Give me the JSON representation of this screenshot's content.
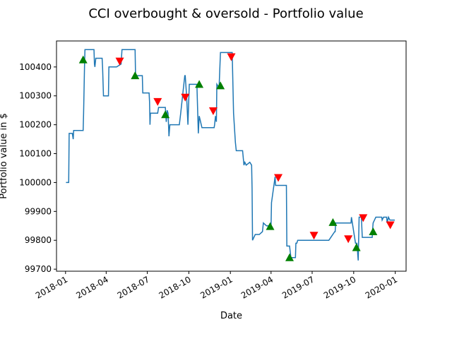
{
  "chart_data": {
    "type": "line",
    "title": "CCI overbought & oversold - Portfolio value",
    "xlabel": "Date",
    "ylabel": "Portfolio value in $",
    "xlim": [
      "2017-12-12",
      "2020-01-25"
    ],
    "ylim": [
      99693,
      100490
    ],
    "x_ticks": [
      {
        "date": "2018-01-01",
        "label": "2018-01"
      },
      {
        "date": "2018-04-01",
        "label": "2018-04"
      },
      {
        "date": "2018-07-01",
        "label": "2018-07"
      },
      {
        "date": "2018-10-01",
        "label": "2018-10"
      },
      {
        "date": "2019-01-01",
        "label": "2019-01"
      },
      {
        "date": "2019-04-01",
        "label": "2019-04"
      },
      {
        "date": "2019-07-01",
        "label": "2019-07"
      },
      {
        "date": "2019-10-01",
        "label": "2019-10"
      },
      {
        "date": "2020-01-01",
        "label": "2020-01"
      }
    ],
    "y_ticks": [
      {
        "value": 99700,
        "label": "99700"
      },
      {
        "value": 99800,
        "label": "99800"
      },
      {
        "value": 99900,
        "label": "99900"
      },
      {
        "value": 100000,
        "label": "100000"
      },
      {
        "value": 100100,
        "label": "100100"
      },
      {
        "value": 100200,
        "label": "100200"
      },
      {
        "value": 100300,
        "label": "100300"
      },
      {
        "value": 100400,
        "label": "100400"
      }
    ],
    "colors": {
      "line": "#1f77b4",
      "buy": "#008000",
      "sell": "#ff0000"
    },
    "series": [
      {
        "type": "line",
        "x": [
          "2018-01-02",
          "2018-01-08",
          "2018-01-09",
          "2018-01-10",
          "2018-01-16",
          "2018-01-18",
          "2018-01-19",
          "2018-01-24",
          "2018-02-09",
          "2018-02-10",
          "2018-02-12",
          "2018-02-13",
          "2018-02-15",
          "2018-03-05",
          "2018-03-06",
          "2018-03-07",
          "2018-03-09",
          "2018-03-23",
          "2018-03-24",
          "2018-03-26",
          "2018-03-28",
          "2018-04-06",
          "2018-04-07",
          "2018-04-10",
          "2018-04-24",
          "2018-05-04",
          "2018-05-06",
          "2018-05-08",
          "2018-06-04",
          "2018-06-05",
          "2018-06-07",
          "2018-06-20",
          "2018-06-21",
          "2018-06-22",
          "2018-07-05",
          "2018-07-06",
          "2018-07-07",
          "2018-07-08",
          "2018-07-24",
          "2018-07-26",
          "2018-08-10",
          "2018-08-12",
          "2018-08-14",
          "2018-08-16",
          "2018-08-18",
          "2018-08-20",
          "2018-08-22",
          "2018-09-10",
          "2018-09-13",
          "2018-09-22",
          "2018-09-23",
          "2018-09-26",
          "2018-09-29",
          "2018-10-02",
          "2018-10-18",
          "2018-10-19",
          "2018-10-22",
          "2018-10-24",
          "2018-10-30",
          "2018-11-10",
          "2018-11-11",
          "2018-11-26",
          "2018-11-27",
          "2018-11-29",
          "2018-12-01",
          "2018-12-02",
          "2018-12-06",
          "2018-12-07",
          "2018-12-10",
          "2018-12-23",
          "2018-12-24",
          "2018-12-27",
          "2019-01-05",
          "2019-01-08",
          "2019-01-12",
          "2019-01-14",
          "2019-01-28",
          "2019-01-31",
          "2019-02-02",
          "2019-02-05",
          "2019-02-13",
          "2019-02-17",
          "2019-02-18",
          "2019-02-19",
          "2019-02-25",
          "2019-02-28",
          "2019-03-01",
          "2019-03-06",
          "2019-03-13",
          "2019-03-15",
          "2019-03-22",
          "2019-03-30",
          "2019-04-01",
          "2019-04-02",
          "2019-04-10",
          "2019-04-11",
          "2019-04-13",
          "2019-04-14",
          "2019-05-05",
          "2019-05-06",
          "2019-05-12",
          "2019-05-15",
          "2019-05-20",
          "2019-05-25",
          "2019-05-26",
          "2019-05-28",
          "2019-05-30",
          "2019-08-06",
          "2019-08-07",
          "2019-08-20",
          "2019-08-21",
          "2019-08-22",
          "2019-09-25",
          "2019-09-26",
          "2019-10-05",
          "2019-10-08",
          "2019-10-09",
          "2019-10-10",
          "2019-10-11",
          "2019-10-13",
          "2019-10-18",
          "2019-10-20",
          "2019-10-22",
          "2019-11-11",
          "2019-11-12",
          "2019-11-13",
          "2019-11-19",
          "2019-12-02",
          "2019-12-03",
          "2019-12-06",
          "2019-12-13",
          "2019-12-14",
          "2019-12-17",
          "2019-12-20",
          "2019-12-31"
        ],
        "y": [
          100000,
          100000,
          100170,
          100170,
          100170,
          100150,
          100180,
          100180,
          100180,
          100240,
          100400,
          100460,
          100460,
          100460,
          100410,
          100400,
          100430,
          100430,
          100400,
          100300,
          100300,
          100300,
          100400,
          100400,
          100400,
          100410,
          100460,
          100460,
          100460,
          100370,
          100370,
          100370,
          100310,
          100310,
          100310,
          100280,
          100200,
          100240,
          100240,
          100260,
          100260,
          100210,
          100250,
          100240,
          100160,
          100200,
          100200,
          100200,
          100240,
          100370,
          100370,
          100300,
          100200,
          100340,
          100340,
          100330,
          100170,
          100230,
          100190,
          100190,
          100190,
          100190,
          100200,
          100230,
          100210,
          100340,
          100330,
          100330,
          100450,
          100450,
          100450,
          100450,
          100450,
          100240,
          100140,
          100110,
          100110,
          100060,
          100070,
          100060,
          100070,
          100060,
          99980,
          99800,
          99820,
          99820,
          99820,
          99820,
          99830,
          99860,
          99850,
          99850,
          99850,
          99930,
          100020,
          99990,
          99990,
          99990,
          99990,
          99780,
          99780,
          99740,
          99740,
          99740,
          99790,
          99790,
          99800,
          99800,
          99800,
          99830,
          99830,
          99860,
          99860,
          99880,
          99790,
          99790,
          99780,
          99750,
          99730,
          99880,
          99880,
          99810,
          99810,
          99810,
          99840,
          99860,
          99880,
          99880,
          99870,
          99880,
          99880,
          99860,
          99880,
          99870,
          99870
        ]
      },
      {
        "type": "scatter",
        "marker": "triangle-up",
        "x": [
          "2018-02-09",
          "2018-06-04",
          "2018-08-10",
          "2018-10-24",
          "2018-12-10",
          "2019-03-30",
          "2019-05-12",
          "2019-08-16",
          "2019-10-07",
          "2019-11-13"
        ],
        "y": [
          100425,
          100370,
          100235,
          100340,
          100335,
          99848,
          99740,
          99862,
          99775,
          99830
        ]
      },
      {
        "type": "scatter",
        "marker": "triangle-down",
        "x": [
          "2018-05-01",
          "2018-07-24",
          "2018-09-23",
          "2018-11-24",
          "2019-01-03",
          "2019-04-17",
          "2019-07-05",
          "2019-09-19",
          "2019-10-22",
          "2019-12-21"
        ],
        "y": [
          100420,
          100280,
          100295,
          100248,
          100435,
          100017,
          99817,
          99805,
          99878,
          99853
        ]
      }
    ]
  }
}
